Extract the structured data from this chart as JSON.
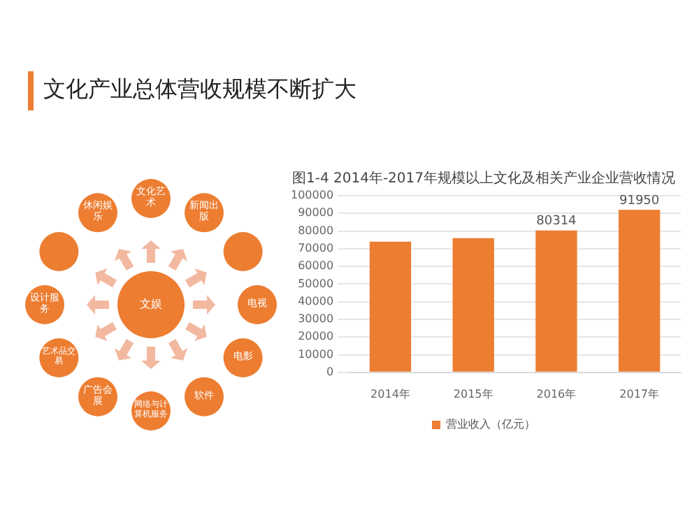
{
  "chart_data": [
    {
      "type": "other",
      "title": "文化产业总体营收规模不断扩大",
      "categories": [
        "文化艺术",
        "新闻出版",
        null,
        "电视",
        "电影",
        "软件",
        "网络与计算机服务",
        "广告会展",
        "艺术品交易",
        "设计服务",
        null,
        "休闲娱乐"
      ],
      "annotations": [
        "文娱"
      ],
      "color": "#ed7d31"
    },
    {
      "type": "bar",
      "title": "图1-4 2014年-2017年规模以上文化及相关产业企业营收情况",
      "categories": [
        "2014年",
        "2015年",
        "2016年",
        "2017年"
      ],
      "series": [
        {
          "name": "营业收入（亿元）",
          "color": "#ed7d31",
          "values": [
            74000,
            76000,
            80314,
            91950
          ]
        }
      ],
      "value_labels": [
        null,
        null,
        "80314",
        "91950"
      ],
      "ylim": [
        0,
        100000
      ],
      "yticks": [
        0,
        10000,
        20000,
        30000,
        40000,
        50000,
        60000,
        70000,
        80000,
        90000,
        100000
      ],
      "grid": "y",
      "legend": "bottom"
    }
  ]
}
